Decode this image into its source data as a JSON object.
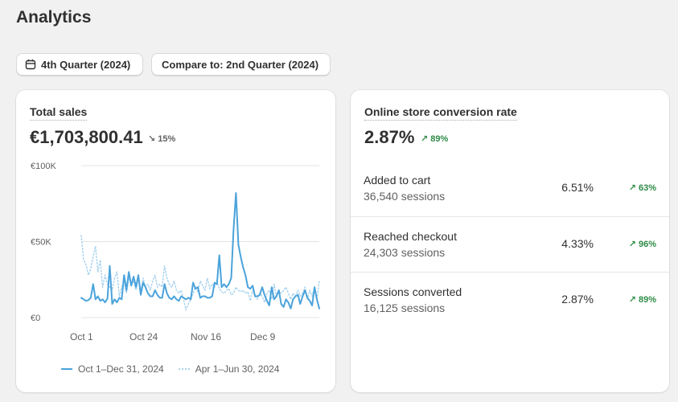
{
  "page": {
    "title": "Analytics"
  },
  "toolbar": {
    "date_range": "4th Quarter (2024)",
    "compare": "Compare to: 2nd Quarter (2024)"
  },
  "total_sales": {
    "title": "Total sales",
    "value": "€1,703,800.41",
    "change": "↘ 15%",
    "legend_current": "Oct 1–Dec 31, 2024",
    "legend_previous": "Apr 1–Jun 30, 2024"
  },
  "conversion": {
    "title": "Online store conversion rate",
    "value": "2.87%",
    "change": "↗ 89%",
    "rows": [
      {
        "label": "Added to cart",
        "sessions": "36,540 sessions",
        "rate": "6.51%",
        "change": "↗ 63%"
      },
      {
        "label": "Reached checkout",
        "sessions": "24,303 sessions",
        "rate": "4.33%",
        "change": "↗ 96%"
      },
      {
        "label": "Sessions converted",
        "sessions": "16,125 sessions",
        "rate": "2.87%",
        "change": "↗ 89%"
      }
    ]
  },
  "colors": {
    "current_series": "#4ba3db",
    "previous_series": "#a9d3ee",
    "positive": "#2e8b47",
    "negative": "#616161"
  },
  "chart_data": {
    "type": "line",
    "title": "Total sales",
    "ylabel": "",
    "xlabel": "",
    "y_ticks": [
      "€0",
      "€50K",
      "€100K"
    ],
    "x_ticks": [
      "Oct 1",
      "Oct 24",
      "Nov 16",
      "Dec 9"
    ],
    "ylim": [
      0,
      100000
    ],
    "grid": true,
    "legend_position": "bottom",
    "series": [
      {
        "name": "Oct 1–Dec 31, 2024",
        "style": "solid",
        "values": [
          13000,
          12000,
          11000,
          11500,
          13000,
          22000,
          12000,
          14000,
          11000,
          12000,
          10000,
          12500,
          34000,
          9000,
          12000,
          10000,
          13000,
          12000,
          28000,
          18000,
          30000,
          21000,
          27000,
          20000,
          28000,
          15000,
          23000,
          20000,
          16000,
          14000,
          14000,
          18000,
          15000,
          13000,
          13000,
          22000,
          16000,
          13000,
          12000,
          14000,
          12000,
          11000,
          14000,
          13000,
          12000,
          13000,
          12000,
          23000,
          19000,
          20000,
          13000,
          14000,
          14000,
          13000,
          13000,
          14000,
          23000,
          22000,
          41000,
          20000,
          22000,
          20000,
          22000,
          26000,
          58000,
          82000,
          48000,
          40000,
          33000,
          28000,
          20000,
          19000,
          21000,
          14000,
          14000,
          15000,
          20000,
          15000,
          11000,
          8000,
          20000,
          12000,
          14000,
          18000,
          9000,
          7000,
          12000,
          10000,
          6000,
          12000,
          14000,
          15000,
          9000,
          14000,
          18000,
          13000,
          11000,
          8000,
          20000,
          12000,
          6000
        ]
      },
      {
        "name": "Apr 1–Jun 30, 2024",
        "style": "dotted",
        "values": [
          54000,
          38000,
          35000,
          28000,
          32000,
          40000,
          47000,
          30000,
          38000,
          20000,
          28000,
          22000,
          20000,
          18000,
          26000,
          30000,
          14000,
          20000,
          24000,
          16000,
          26000,
          22000,
          24000,
          18000,
          26000,
          18000,
          26000,
          20000,
          22000,
          18000,
          24000,
          28000,
          20000,
          22000,
          20000,
          34000,
          26000,
          22000,
          20000,
          24000,
          18000,
          16000,
          18000,
          12000,
          5000,
          9000,
          12000,
          16000,
          20000,
          17000,
          24000,
          21000,
          18000,
          26000,
          19000,
          22000,
          20000,
          24000,
          19000,
          17000,
          16000,
          18000,
          19000,
          15000,
          16000,
          20000,
          18000,
          17000,
          18000,
          16000,
          17000,
          11000,
          18000,
          14000,
          12000,
          16000,
          14000,
          10000,
          16000,
          18000,
          12000,
          22000,
          13000,
          18000,
          16000,
          18000,
          20000,
          16000,
          12000,
          16000,
          14000,
          18000,
          14000,
          16000,
          20000,
          12000,
          18000,
          14000,
          20000,
          12000,
          24000
        ]
      }
    ]
  }
}
